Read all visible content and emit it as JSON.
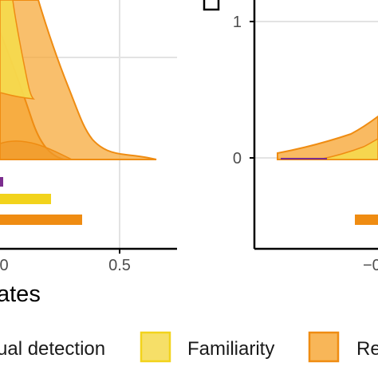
{
  "chart_data": [
    {
      "type": "area",
      "panel": "left",
      "xlabel": "ates",
      "x_ticks": [
        "0",
        "0.5"
      ],
      "series": [
        {
          "name": "Familiarity",
          "color": "#f5d94e",
          "x": [
            -0.1,
            0.0,
            0.1,
            0.2,
            0.3
          ],
          "density": [
            1.4,
            0.9,
            0.55,
            0.15,
            0.0
          ]
        },
        {
          "name": "Re",
          "color": "#f7a93b",
          "x": [
            -0.1,
            0.0,
            0.1,
            0.2,
            0.3,
            0.4,
            0.5,
            0.65
          ],
          "density": [
            1.4,
            1.1,
            0.8,
            0.45,
            0.15,
            0.05,
            0.02,
            0.0
          ]
        }
      ],
      "intervals": [
        {
          "series": "",
          "color": "#7b2d8e",
          "start": -0.1,
          "end": -0.05
        },
        {
          "series": "Familiarity",
          "color": "#f2d31c",
          "start": -0.1,
          "end": 0.2
        },
        {
          "series": "Re",
          "color": "#ef8c12",
          "start": -0.1,
          "end": 0.33
        }
      ]
    },
    {
      "type": "area",
      "panel": "right",
      "y_ticks": [
        "1",
        "0"
      ],
      "x_ticks": [
        "−0"
      ],
      "series": [
        {
          "name": "Re",
          "color": "#f7a93b"
        },
        {
          "name": "Familiarity",
          "color": "#f5d94e"
        }
      ]
    }
  ],
  "legend": {
    "items": [
      {
        "label": "ual detection",
        "color": "#7b2d8e"
      },
      {
        "label": "Familiarity",
        "color": "#f5d94e"
      },
      {
        "label": "Re",
        "color": "#f7a93b"
      }
    ]
  }
}
